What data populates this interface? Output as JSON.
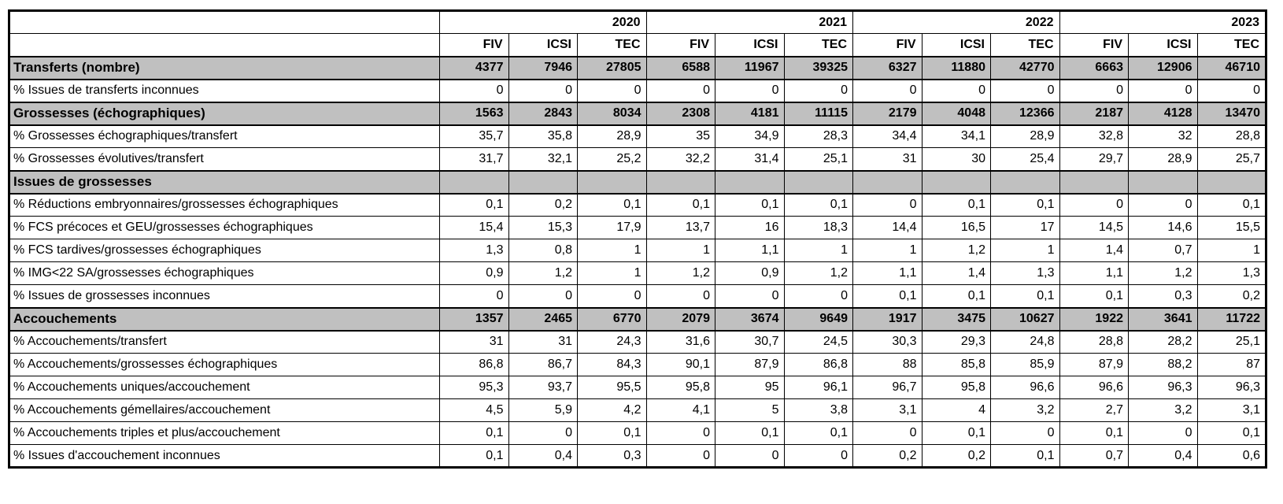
{
  "colors": {
    "section_row_background": "#c0c0c0",
    "border": "#000000",
    "page_background": "#ffffff"
  },
  "table": {
    "years": [
      "2020",
      "2021",
      "2022",
      "2023"
    ],
    "methods": [
      "FIV",
      "ICSI",
      "TEC"
    ],
    "rows": [
      {
        "label": "Transferts (nombre)",
        "type": "section",
        "values": [
          "4377",
          "7946",
          "27805",
          "6588",
          "11967",
          "39325",
          "6327",
          "11880",
          "42770",
          "6663",
          "12906",
          "46710"
        ]
      },
      {
        "label": "% Issues de transferts inconnues",
        "type": "data",
        "values": [
          "0",
          "0",
          "0",
          "0",
          "0",
          "0",
          "0",
          "0",
          "0",
          "0",
          "0",
          "0"
        ]
      },
      {
        "label": "Grossesses (échographiques)",
        "type": "section",
        "values": [
          "1563",
          "2843",
          "8034",
          "2308",
          "4181",
          "11115",
          "2179",
          "4048",
          "12366",
          "2187",
          "4128",
          "13470"
        ]
      },
      {
        "label": "% Grossesses échographiques/transfert",
        "type": "data",
        "values": [
          "35,7",
          "35,8",
          "28,9",
          "35",
          "34,9",
          "28,3",
          "34,4",
          "34,1",
          "28,9",
          "32,8",
          "32",
          "28,8"
        ]
      },
      {
        "label": "% Grossesses évolutives/transfert",
        "type": "data",
        "values": [
          "31,7",
          "32,1",
          "25,2",
          "32,2",
          "31,4",
          "25,1",
          "31",
          "30",
          "25,4",
          "29,7",
          "28,9",
          "25,7"
        ]
      },
      {
        "label": "Issues de grossesses",
        "type": "section",
        "values": [
          "",
          "",
          "",
          "",
          "",
          "",
          "",
          "",
          "",
          "",
          "",
          ""
        ]
      },
      {
        "label": "% Réductions embryonnaires/grossesses échographiques",
        "type": "data",
        "values": [
          "0,1",
          "0,2",
          "0,1",
          "0,1",
          "0,1",
          "0,1",
          "0",
          "0,1",
          "0,1",
          "0",
          "0",
          "0,1"
        ]
      },
      {
        "label": "% FCS précoces et GEU/grossesses échographiques",
        "type": "data",
        "values": [
          "15,4",
          "15,3",
          "17,9",
          "13,7",
          "16",
          "18,3",
          "14,4",
          "16,5",
          "17",
          "14,5",
          "14,6",
          "15,5"
        ]
      },
      {
        "label": "% FCS tardives/grossesses échographiques",
        "type": "data",
        "values": [
          "1,3",
          "0,8",
          "1",
          "1",
          "1,1",
          "1",
          "1",
          "1,2",
          "1",
          "1,4",
          "0,7",
          "1"
        ]
      },
      {
        "label": "% IMG<22 SA/grossesses échographiques",
        "type": "data",
        "values": [
          "0,9",
          "1,2",
          "1",
          "1,2",
          "0,9",
          "1,2",
          "1,1",
          "1,4",
          "1,3",
          "1,1",
          "1,2",
          "1,3"
        ]
      },
      {
        "label": "% Issues de grossesses inconnues",
        "type": "data",
        "values": [
          "0",
          "0",
          "0",
          "0",
          "0",
          "0",
          "0,1",
          "0,1",
          "0,1",
          "0,1",
          "0,3",
          "0,2"
        ]
      },
      {
        "label": "Accouchements",
        "type": "section",
        "values": [
          "1357",
          "2465",
          "6770",
          "2079",
          "3674",
          "9649",
          "1917",
          "3475",
          "10627",
          "1922",
          "3641",
          "11722"
        ]
      },
      {
        "label": "% Accouchements/transfert",
        "type": "data",
        "values": [
          "31",
          "31",
          "24,3",
          "31,6",
          "30,7",
          "24,5",
          "30,3",
          "29,3",
          "24,8",
          "28,8",
          "28,2",
          "25,1"
        ]
      },
      {
        "label": "% Accouchements/grossesses échographiques",
        "type": "data",
        "values": [
          "86,8",
          "86,7",
          "84,3",
          "90,1",
          "87,9",
          "86,8",
          "88",
          "85,8",
          "85,9",
          "87,9",
          "88,2",
          "87"
        ]
      },
      {
        "label": "% Accouchements uniques/accouchement",
        "type": "data",
        "values": [
          "95,3",
          "93,7",
          "95,5",
          "95,8",
          "95",
          "96,1",
          "96,7",
          "95,8",
          "96,6",
          "96,6",
          "96,3",
          "96,3"
        ]
      },
      {
        "label": "% Accouchements gémellaires/accouchement",
        "type": "data",
        "values": [
          "4,5",
          "5,9",
          "4,2",
          "4,1",
          "5",
          "3,8",
          "3,1",
          "4",
          "3,2",
          "2,7",
          "3,2",
          "3,1"
        ]
      },
      {
        "label": "% Accouchements triples et plus/accouchement",
        "type": "data",
        "values": [
          "0,1",
          "0",
          "0,1",
          "0",
          "0,1",
          "0,1",
          "0",
          "0,1",
          "0",
          "0,1",
          "0",
          "0,1"
        ]
      },
      {
        "label": "% Issues d'accouchement inconnues",
        "type": "data",
        "values": [
          "0,1",
          "0,4",
          "0,3",
          "0",
          "0",
          "0",
          "0,2",
          "0,2",
          "0,1",
          "0,7",
          "0,4",
          "0,6"
        ]
      }
    ]
  }
}
